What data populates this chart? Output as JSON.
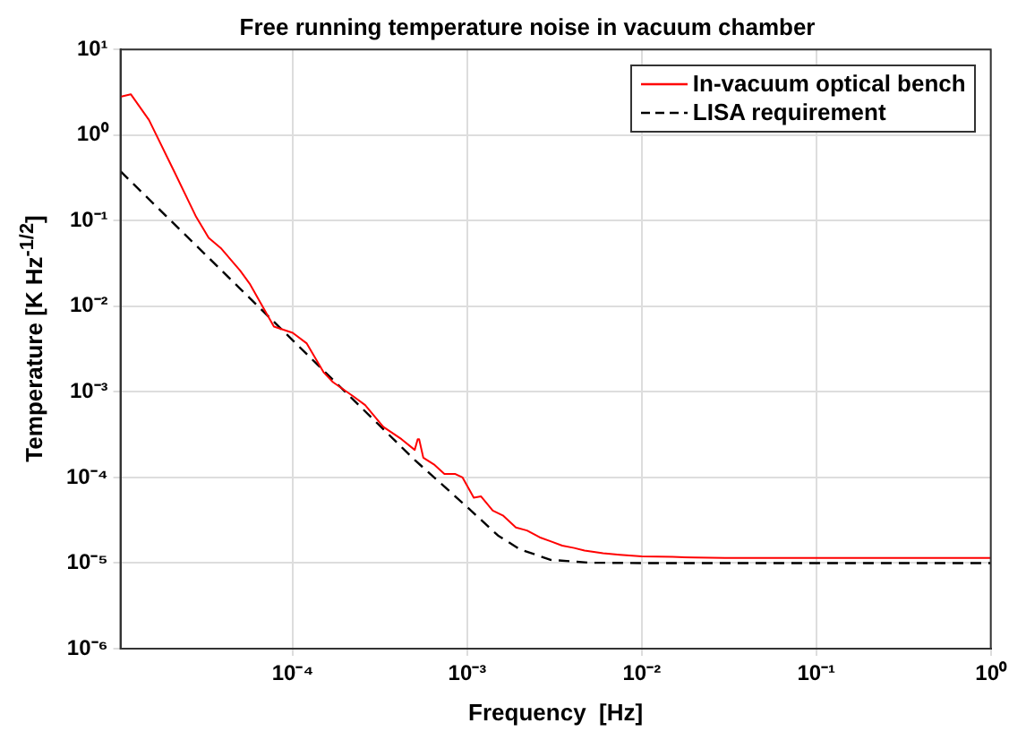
{
  "chart_data": {
    "type": "line",
    "title": "Free running temperature noise in vacuum chamber",
    "xlabel": "Frequency  [Hz]",
    "ylabel": "Temperature  [K Hz$^{-1/2}$]",
    "log": "xy",
    "grid": true,
    "legend": "top right",
    "marker": "none",
    "xlim": [
      1.03e-05,
      1
    ],
    "ylim": [
      1e-06,
      10
    ],
    "xticks": [
      {
        "value": 0.0001,
        "label": "10⁻⁴"
      },
      {
        "value": 0.001,
        "label": "10⁻³"
      },
      {
        "value": 0.01,
        "label": "10⁻²"
      },
      {
        "value": 0.1,
        "label": "10⁻¹"
      },
      {
        "value": 1,
        "label": "10⁰"
      }
    ],
    "yticks": [
      {
        "value": 1e-06,
        "label": "10⁻⁶"
      },
      {
        "value": 1e-05,
        "label": "10⁻⁵"
      },
      {
        "value": 0.0001,
        "label": "10⁻⁴"
      },
      {
        "value": 0.001,
        "label": "10⁻³"
      },
      {
        "value": 0.01,
        "label": "10⁻²"
      },
      {
        "value": 0.1,
        "label": "10⁻¹"
      },
      {
        "value": 1,
        "label": "10⁰"
      },
      {
        "value": 10,
        "label": "10¹"
      }
    ],
    "series": [
      {
        "name": "In-vacuum optical bench",
        "color": "#ff0000",
        "line_style": "solid",
        "x": [
          1.03e-05,
          1.18e-05,
          1.5e-05,
          2.1e-05,
          2.8e-05,
          3.3e-05,
          3.9e-05,
          5e-05,
          5.7e-05,
          7.8e-05,
          0.0001,
          0.00012,
          0.00015,
          0.00017,
          0.00022,
          0.00026,
          0.00033,
          0.00042,
          0.0005,
          0.00052,
          0.00053,
          0.00056,
          0.00065,
          0.00074,
          0.00085,
          0.00094,
          0.00109,
          0.0012,
          0.0014,
          0.0016,
          0.0019,
          0.0022,
          0.0026,
          0.003,
          0.0035,
          0.0041,
          0.0047,
          0.006,
          0.0075,
          0.01,
          0.015,
          0.02,
          0.03,
          0.05,
          0.1,
          0.2,
          0.5,
          1
        ],
        "values": [
          2.8,
          3.0,
          1.5,
          0.37,
          0.11,
          0.063,
          0.047,
          0.026,
          0.018,
          0.0058,
          0.0049,
          0.0037,
          0.0017,
          0.0013,
          0.0009,
          0.0007,
          0.00039,
          0.00028,
          0.00021,
          0.00028,
          0.00028,
          0.00017,
          0.00014,
          0.00011,
          0.00011,
          0.0001,
          5.8e-05,
          6e-05,
          4.1e-05,
          3.6e-05,
          2.6e-05,
          2.4e-05,
          2e-05,
          1.8e-05,
          1.6e-05,
          1.5e-05,
          1.4e-05,
          1.3e-05,
          1.25e-05,
          1.2e-05,
          1.18e-05,
          1.16e-05,
          1.15e-05,
          1.15e-05,
          1.15e-05,
          1.15e-05,
          1.15e-05,
          1.15e-05
        ]
      },
      {
        "name": "LISA requirement",
        "color": "#000000",
        "line_style": "dashed",
        "x": [
          1.03e-05,
          2e-05,
          5e-05,
          0.0001,
          0.0002,
          0.0005,
          0.001,
          0.0015,
          0.002,
          0.003,
          0.005,
          0.01,
          0.1,
          1
        ],
        "values": [
          0.377,
          0.1,
          0.016,
          0.004,
          0.001,
          0.00016,
          4.5e-05,
          2.1e-05,
          1.45e-05,
          1.09e-05,
          1.01e-05,
          1e-05,
          1e-05,
          1e-05
        ]
      }
    ]
  }
}
